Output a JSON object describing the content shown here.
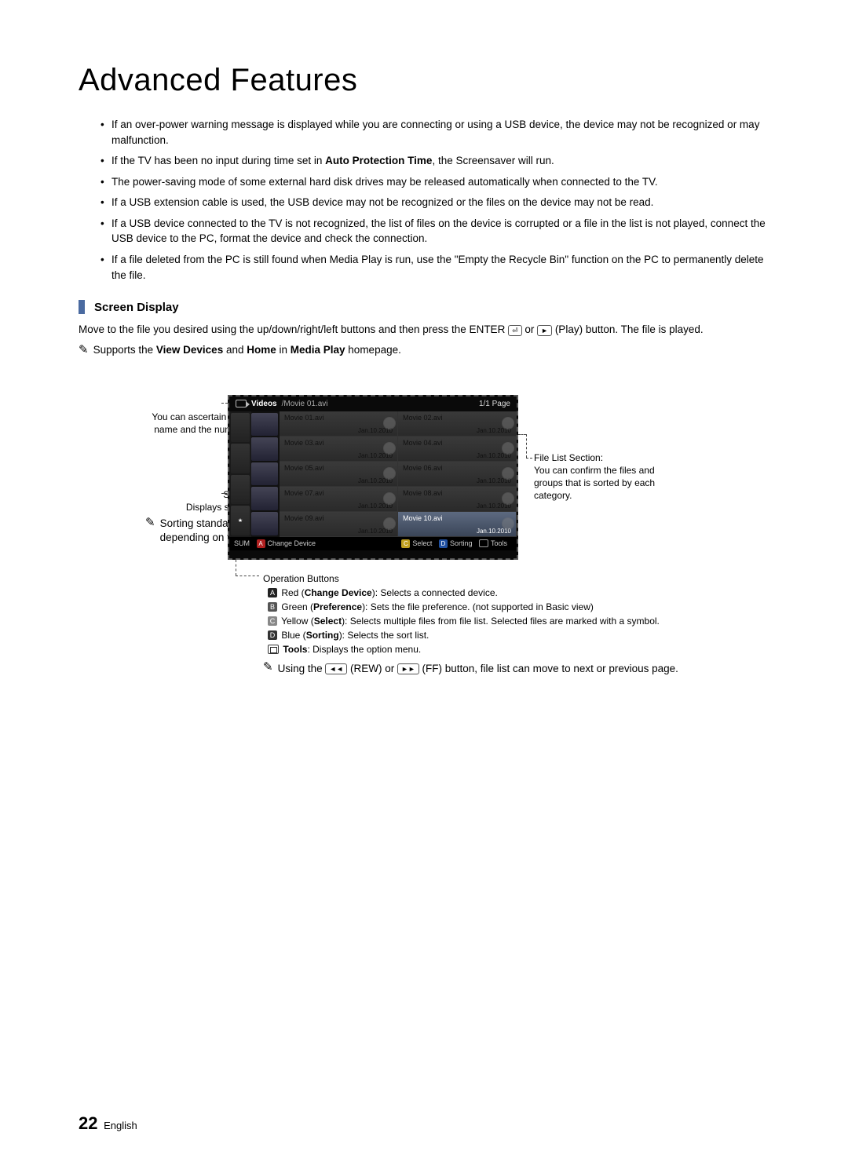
{
  "title": "Advanced Features",
  "bullets": [
    "If an over-power warning message is displayed while you are connecting or using a USB device, the device may not be recognized or may malfunction.",
    "If the TV has been no input during time set in Auto Protection Time, the Screensaver will run.",
    "The power-saving mode of some external hard disk drives may be released automatically when connected to the TV.",
    "If a USB extension cable is used, the USB device may not be recognized or the files on the device may not be read.",
    "If a USB device connected to the TV is not recognized, the list of files on the device is corrupted or a file in the list is not played, connect the USB device to the PC, format the device and check the connection.",
    "If a file deleted from the PC is still found when Media Play is run, use the \"Empty the Recycle Bin\" function on the PC to permanently delete the file."
  ],
  "bullet_bold": {
    "1": "Auto Protection Time"
  },
  "subheading": "Screen Display",
  "intro": {
    "pre": "Move to the file you desired using the up/down/right/left buttons and then press the ENTER ",
    "mid": " or ",
    "post": " (Play) button. The file is played."
  },
  "note1": {
    "pre": "Supports the ",
    "b1": "View Devices",
    "and": " and ",
    "b2": "Home",
    "in": " in ",
    "b3": "Media Play",
    "post": " homepage."
  },
  "callouts": {
    "info": "Information:\nYou can ascertain the selected file name and the number of files and page.",
    "sort": "Sort List Section:\nDisplays sorting standard.",
    "sort_note": "Sorting standard is different depending on the contents.",
    "filelist": "File List Section:\nYou can confirm the files and groups that is sorted by each category."
  },
  "screen": {
    "category": "Videos",
    "path": "/Movie 01.avi",
    "page": "1/1 Page",
    "files": [
      {
        "name": "Movie 01.avi",
        "date": "Jan.10.2010"
      },
      {
        "name": "Movie 02.avi",
        "date": "Jan.10.2010"
      },
      {
        "name": "Movie 03.avi",
        "date": "Jan.10.2010"
      },
      {
        "name": "Movie 04.avi",
        "date": "Jan.10.2010"
      },
      {
        "name": "Movie 05.avi",
        "date": "Jan.10.2010"
      },
      {
        "name": "Movie 06.avi",
        "date": "Jan.10.2010"
      },
      {
        "name": "Movie 07.avi",
        "date": "Jan.10.2010"
      },
      {
        "name": "Movie 08.avi",
        "date": "Jan.10.2010"
      },
      {
        "name": "Movie 09.avi",
        "date": "Jan.10.2010"
      },
      {
        "name": "Movie 10.avi",
        "date": "Jan.10.2010"
      }
    ],
    "footer": {
      "sum": "SUM",
      "change": "Change Device",
      "select": "Select",
      "sorting": "Sorting",
      "tools": "Tools"
    }
  },
  "opbuttons": {
    "heading": "Operation Buttons",
    "red": {
      "label": "A",
      "b": "Change Device",
      "pre": " Red (",
      "post": "): Selects a connected device."
    },
    "green": {
      "label": "B",
      "b": "Preference",
      "pre": " Green (",
      "post": "): Sets the file preference. (not supported in Basic view)"
    },
    "yellow": {
      "label": "C",
      "b": "Select",
      "pre": " Yellow (",
      "post": "): Selects multiple files from file list. Selected files are marked with a symbol."
    },
    "blue": {
      "label": "D",
      "b": "Sorting",
      "pre": " Blue (",
      "post": "): Selects the sort list."
    },
    "tools": {
      "b": "Tools",
      "post": ": Displays the option menu."
    },
    "nav": {
      "pre": "Using the ",
      "rew": "◄◄",
      "m1": " (REW) or ",
      "ff": "►►",
      "post": " (FF) button, file list can move to next or previous page."
    }
  },
  "footer": {
    "page": "22",
    "lang": "English"
  }
}
